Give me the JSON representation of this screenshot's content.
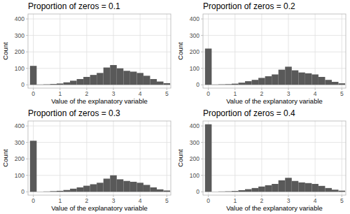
{
  "chart_data": [
    {
      "type": "histogram",
      "title": "Proportion of zeros = 0.1",
      "x_label": "Value of the explanatory variable",
      "y_label": "Count",
      "bins": [
        -0.125,
        0.125,
        0.375,
        0.625,
        0.875,
        1.125,
        1.375,
        1.625,
        1.875,
        2.125,
        2.375,
        2.625,
        2.875,
        3.125,
        3.375,
        3.625,
        3.875,
        4.125,
        4.375,
        4.625,
        4.875,
        5.125
      ],
      "values": [
        115,
        2,
        3,
        5,
        8,
        15,
        25,
        35,
        48,
        60,
        72,
        105,
        120,
        100,
        85,
        80,
        72,
        55,
        35,
        20,
        10
      ],
      "color": "#595959",
      "xlim": [
        -0.2,
        5.15
      ],
      "ylim": [
        -20,
        430
      ],
      "xticks": [
        0,
        1,
        2,
        3,
        4,
        5
      ],
      "yticks": [
        0,
        100,
        200,
        300,
        400
      ],
      "grid": true
    },
    {
      "type": "histogram",
      "title": "Proportion of zeros = 0.2",
      "x_label": "Value of the explanatory variable",
      "y_label": "Count",
      "bins": [
        -0.125,
        0.125,
        0.375,
        0.625,
        0.875,
        1.125,
        1.375,
        1.625,
        1.875,
        2.125,
        2.375,
        2.625,
        2.875,
        3.125,
        3.375,
        3.625,
        3.875,
        4.125,
        4.375,
        4.625,
        4.875,
        5.125
      ],
      "values": [
        220,
        2,
        3,
        4,
        7,
        13,
        22,
        30,
        42,
        52,
        63,
        92,
        110,
        88,
        75,
        70,
        63,
        48,
        30,
        18,
        9
      ],
      "color": "#595959",
      "xlim": [
        -0.2,
        5.15
      ],
      "ylim": [
        -20,
        430
      ],
      "xticks": [
        0,
        1,
        2,
        3,
        4,
        5
      ],
      "yticks": [
        0,
        100,
        200,
        300,
        400
      ],
      "grid": true
    },
    {
      "type": "histogram",
      "title": "Proportion of zeros = 0.3",
      "x_label": "Value of the explanatory variable",
      "y_label": "Count",
      "bins": [
        -0.125,
        0.125,
        0.375,
        0.625,
        0.875,
        1.125,
        1.375,
        1.625,
        1.875,
        2.125,
        2.375,
        2.625,
        2.875,
        3.125,
        3.375,
        3.625,
        3.875,
        4.125,
        4.375,
        4.625,
        4.875,
        5.125
      ],
      "values": [
        310,
        1,
        2,
        4,
        6,
        11,
        19,
        27,
        37,
        46,
        55,
        80,
        100,
        76,
        66,
        61,
        55,
        42,
        27,
        15,
        8
      ],
      "color": "#595959",
      "xlim": [
        -0.2,
        5.15
      ],
      "ylim": [
        -20,
        430
      ],
      "xticks": [
        0,
        1,
        2,
        3,
        4,
        5
      ],
      "yticks": [
        0,
        100,
        200,
        300,
        400
      ],
      "grid": true
    },
    {
      "type": "histogram",
      "title": "Proportion of zeros = 0.4",
      "x_label": "Value of the explanatory variable",
      "y_label": "Count",
      "bins": [
        -0.125,
        0.125,
        0.375,
        0.625,
        0.875,
        1.125,
        1.375,
        1.625,
        1.875,
        2.125,
        2.375,
        2.625,
        2.875,
        3.125,
        3.375,
        3.625,
        3.875,
        4.125,
        4.375,
        4.625,
        4.875,
        5.125
      ],
      "values": [
        410,
        1,
        2,
        3,
        5,
        10,
        16,
        23,
        32,
        40,
        48,
        70,
        85,
        66,
        57,
        53,
        48,
        36,
        23,
        13,
        7
      ],
      "color": "#595959",
      "xlim": [
        -0.2,
        5.15
      ],
      "ylim": [
        -20,
        430
      ],
      "xticks": [
        0,
        1,
        2,
        3,
        4,
        5
      ],
      "yticks": [
        0,
        100,
        200,
        300,
        400
      ],
      "grid": true
    }
  ]
}
